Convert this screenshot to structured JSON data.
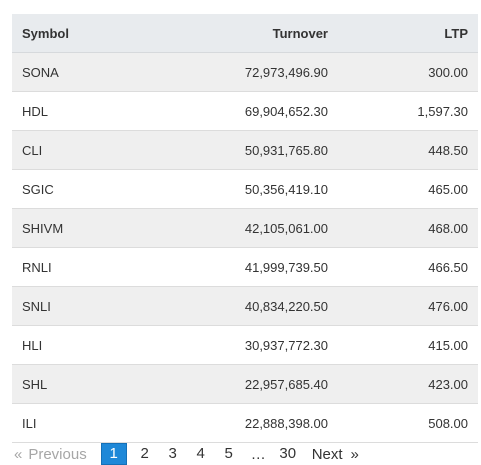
{
  "table": {
    "headers": {
      "symbol": "Symbol",
      "turnover": "Turnover",
      "ltp": "LTP"
    },
    "rows": [
      {
        "symbol": "SONA",
        "turnover": "72,973,496.90",
        "ltp": "300.00"
      },
      {
        "symbol": "HDL",
        "turnover": "69,904,652.30",
        "ltp": "1,597.30"
      },
      {
        "symbol": "CLI",
        "turnover": "50,931,765.80",
        "ltp": "448.50"
      },
      {
        "symbol": "SGIC",
        "turnover": "50,356,419.10",
        "ltp": "465.00"
      },
      {
        "symbol": "SHIVM",
        "turnover": "42,105,061.00",
        "ltp": "468.00"
      },
      {
        "symbol": "RNLI",
        "turnover": "41,999,739.50",
        "ltp": "466.50"
      },
      {
        "symbol": "SNLI",
        "turnover": "40,834,220.50",
        "ltp": "476.00"
      },
      {
        "symbol": "HLI",
        "turnover": "30,937,772.30",
        "ltp": "415.00"
      },
      {
        "symbol": "SHL",
        "turnover": "22,957,685.40",
        "ltp": "423.00"
      },
      {
        "symbol": "ILI",
        "turnover": "22,888,398.00",
        "ltp": "508.00"
      }
    ]
  },
  "pagination": {
    "prev_arrow": "«",
    "prev_label": "Previous",
    "pages": [
      "1",
      "2",
      "3",
      "4",
      "5"
    ],
    "active_page": "1",
    "ellipsis": "…",
    "last_page": "30",
    "next_label": "Next",
    "next_arrow": "»"
  }
}
